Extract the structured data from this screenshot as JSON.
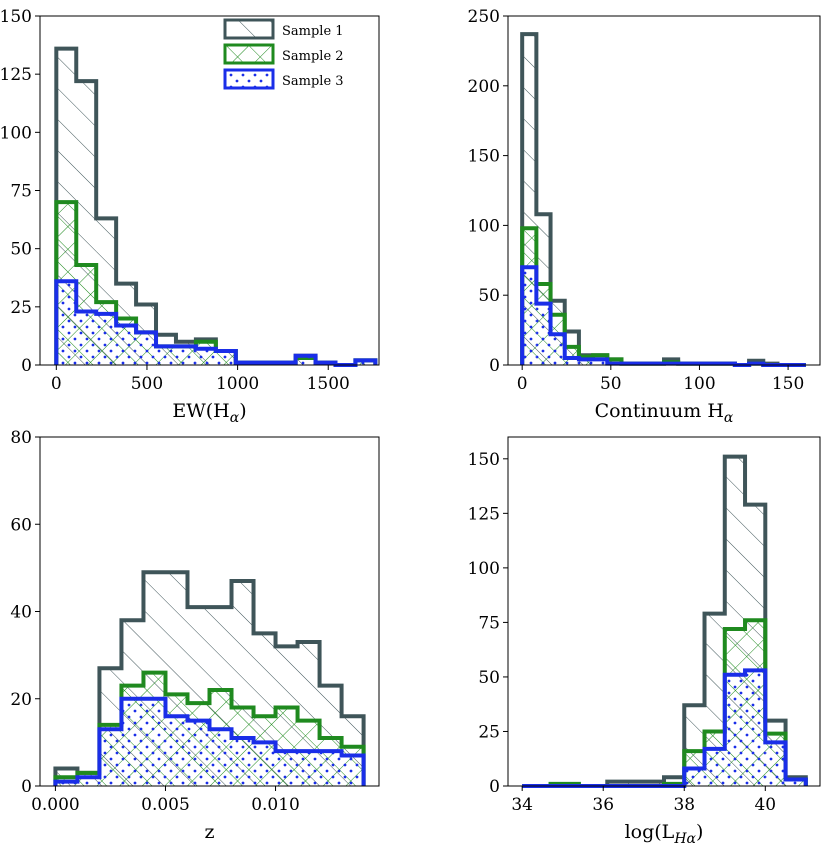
{
  "colors": {
    "sample1": "#3f5559",
    "sample2": "#1f8a1f",
    "sample3": "#1a2ee8"
  },
  "legend": [
    "Sample 1",
    "Sample 2",
    "Sample 3"
  ],
  "chart_data": [
    {
      "type": "histogram",
      "xlabel": "EW(Hα)",
      "xlabel_main": "EW(H",
      "xlabel_sub": "α",
      "xlabel_close": ")",
      "xlim": [
        -90,
        1780
      ],
      "ylim": [
        0,
        150
      ],
      "xticks": [
        0,
        500,
        1000,
        1500
      ],
      "yticks": [
        0,
        25,
        50,
        75,
        100,
        125,
        150
      ],
      "bin_edges": [
        0,
        110,
        220,
        330,
        440,
        550,
        660,
        770,
        880,
        990,
        1100,
        1210,
        1320,
        1430,
        1540,
        1650,
        1760
      ],
      "series": [
        {
          "name": "Sample 1",
          "values": [
            136,
            122,
            63,
            35,
            26,
            13,
            10,
            11,
            6,
            1,
            1,
            1,
            4,
            1,
            0,
            2
          ]
        },
        {
          "name": "Sample 2",
          "values": [
            70,
            43,
            27,
            20,
            14,
            8,
            8,
            10,
            6,
            1,
            1,
            1,
            3,
            1,
            0,
            2
          ]
        },
        {
          "name": "Sample 3",
          "values": [
            36,
            23,
            22,
            17,
            14,
            8,
            8,
            7,
            6,
            1,
            1,
            1,
            4,
            1,
            0,
            2
          ]
        }
      ],
      "legend_position": "top-right"
    },
    {
      "type": "histogram",
      "xlabel": "Continuum Hα",
      "xlabel_main": "Continuum H",
      "xlabel_sub": "α",
      "xlabel_close": "",
      "xlim": [
        -8,
        168
      ],
      "ylim": [
        0,
        250
      ],
      "xticks": [
        0,
        50,
        100,
        150
      ],
      "yticks": [
        0,
        50,
        100,
        150,
        200,
        250
      ],
      "bin_edges": [
        0,
        8,
        16,
        24,
        32,
        40,
        48,
        56,
        64,
        72,
        80,
        88,
        96,
        104,
        112,
        120,
        128,
        136,
        144,
        152,
        160
      ],
      "series": [
        {
          "name": "Sample 1",
          "values": [
            237,
            108,
            46,
            24,
            7,
            7,
            4,
            1,
            1,
            1,
            4,
            1,
            1,
            1,
            1,
            0,
            3,
            1,
            0,
            0
          ]
        },
        {
          "name": "Sample 2",
          "values": [
            98,
            58,
            36,
            13,
            6,
            7,
            4,
            1,
            1,
            1,
            2,
            1,
            1,
            1,
            1,
            0,
            1,
            0,
            0,
            0
          ]
        },
        {
          "name": "Sample 3",
          "values": [
            70,
            44,
            22,
            5,
            4,
            4,
            1,
            1,
            1,
            1,
            1,
            1,
            1,
            1,
            1,
            0,
            1,
            0,
            0,
            0
          ]
        }
      ]
    },
    {
      "type": "histogram",
      "xlabel": "z",
      "xlabel_main": "z",
      "xlabel_sub": "",
      "xlabel_close": "",
      "xlim": [
        -0.0007,
        0.0147
      ],
      "ylim": [
        0,
        80
      ],
      "xticks": [
        0.0,
        0.005,
        0.01
      ],
      "xtick_labels": [
        "0.000",
        "0.005",
        "0.010"
      ],
      "yticks": [
        0,
        20,
        40,
        60,
        80
      ],
      "bin_edges": [
        0,
        0.001,
        0.002,
        0.003,
        0.004,
        0.005,
        0.006,
        0.007,
        0.008,
        0.009,
        0.01,
        0.011,
        0.012,
        0.013,
        0.014
      ],
      "series": [
        {
          "name": "Sample 1",
          "values": [
            4,
            3,
            27,
            38,
            49,
            49,
            41,
            41,
            47,
            35,
            32,
            33,
            23,
            16
          ]
        },
        {
          "name": "Sample 2",
          "values": [
            2,
            3,
            14,
            23,
            26,
            21,
            19,
            22,
            18,
            16,
            18,
            15,
            11,
            9
          ]
        },
        {
          "name": "Sample 3",
          "values": [
            1,
            2,
            13,
            20,
            20,
            16,
            15,
            13,
            11,
            10,
            8,
            8,
            8,
            7
          ]
        }
      ]
    },
    {
      "type": "histogram",
      "xlabel": "log(LHα)",
      "xlabel_main": "log(L",
      "xlabel_sub": "Hα",
      "xlabel_close": ")",
      "xlim": [
        33.65,
        41.35
      ],
      "ylim": [
        0,
        160
      ],
      "xticks": [
        34,
        36,
        38,
        40
      ],
      "yticks": [
        0,
        25,
        50,
        75,
        100,
        125,
        150
      ],
      "bin_edges": [
        34.0,
        34.7,
        35.4,
        36.1,
        36.8,
        37.5,
        38.0,
        38.5,
        39.0,
        39.5,
        40.0,
        40.5,
        41.0
      ],
      "series": [
        {
          "name": "Sample 1",
          "values": [
            0,
            0,
            0,
            2,
            2,
            4,
            37,
            79,
            151,
            129,
            30,
            4
          ]
        },
        {
          "name": "Sample 2",
          "values": [
            0,
            1,
            0,
            0,
            0,
            1,
            16,
            25,
            72,
            76,
            24,
            3
          ]
        },
        {
          "name": "Sample 3",
          "values": [
            0,
            0,
            0,
            0,
            0,
            0,
            8,
            17,
            51,
            53,
            20,
            3
          ]
        }
      ]
    }
  ]
}
